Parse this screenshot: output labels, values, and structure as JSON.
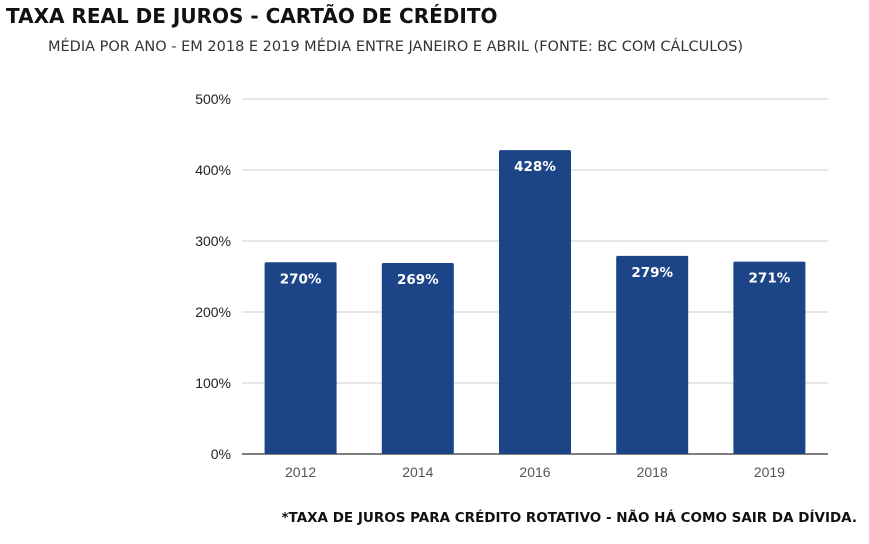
{
  "header": {
    "title": "TAXA REAL DE JUROS - CARTÃO DE CRÉDITO",
    "subtitle": "MÉDIA POR ANO - EM 2018 E 2019 MÉDIA ENTRE JANEIRO E ABRIL (FONTE: BC COM CÁLCULOS)"
  },
  "footnote": "*TAXA DE JUROS PARA CRÉDITO ROTATIVO - NÃO HÁ COMO SAIR DA DÍVIDA.",
  "chart_data": {
    "type": "bar",
    "title": "TAXA REAL DE JUROS - CARTÃO DE CRÉDITO",
    "subtitle": "MÉDIA POR ANO - EM 2018 E 2019 MÉDIA ENTRE JANEIRO E ABRIL (FONTE: BC COM CÁLCULOS)",
    "xlabel": "",
    "ylabel": "",
    "categories": [
      "2012",
      "2014",
      "2016",
      "2018",
      "2019"
    ],
    "values": [
      270,
      269,
      428,
      279,
      271
    ],
    "data_labels": [
      "270%",
      "269%",
      "428%",
      "279%",
      "271%"
    ],
    "ylim": [
      0,
      500
    ],
    "yticks": [
      0,
      100,
      200,
      300,
      400,
      500
    ],
    "ytick_labels": [
      "0%",
      "100%",
      "200%",
      "300%",
      "400%",
      "500%"
    ],
    "grid": true,
    "legend": "none",
    "colors": {
      "bar": "#1c4587",
      "grid": "#cccccc",
      "axis": "#333333",
      "bar_label": "#ffffff"
    }
  }
}
